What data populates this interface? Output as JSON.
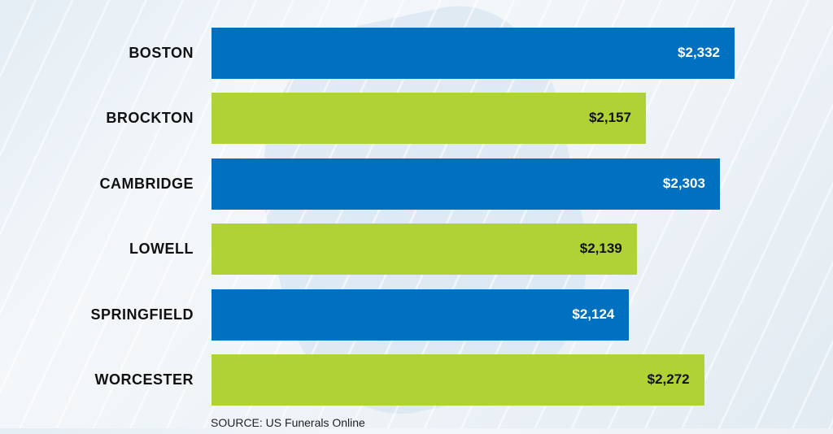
{
  "chart_data": {
    "type": "bar",
    "orientation": "horizontal",
    "categories": [
      "BOSTON",
      "BROCKTON",
      "CAMBRIDGE",
      "LOWELL",
      "SPRINGFIELD",
      "WORCESTER"
    ],
    "values": [
      2332,
      2157,
      2303,
      2139,
      2124,
      2272
    ],
    "value_labels": [
      "$2,332",
      "$2,157",
      "$2,303",
      "$2,139",
      "$2,124",
      "$2,272"
    ],
    "colors": [
      "#0070c0",
      "#b0d235",
      "#0070c0",
      "#b0d235",
      "#0070c0",
      "#b0d235"
    ],
    "label_colors": [
      "#ffffff",
      "#111111",
      "#ffffff",
      "#111111",
      "#ffffff",
      "#111111"
    ],
    "xlim": [
      1300,
      2332
    ],
    "grid": false,
    "title": "",
    "xlabel": "",
    "ylabel": ""
  },
  "source": "SOURCE: US Funerals Online"
}
